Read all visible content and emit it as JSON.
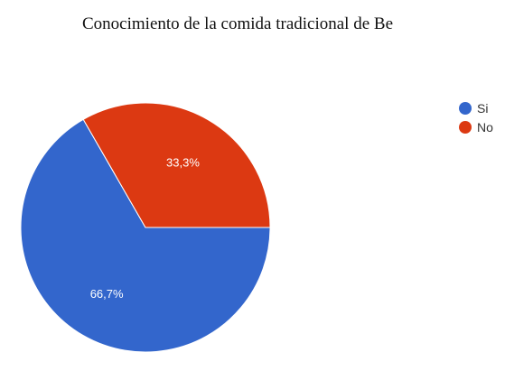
{
  "chart_data": {
    "type": "pie",
    "title": "Conocimiento de la comida tradicional de Be",
    "categories": [
      "Si",
      "No"
    ],
    "values": [
      66.7,
      33.3
    ],
    "data_labels": [
      "66,7%",
      "33,3%"
    ],
    "colors": [
      "#3366cc",
      "#dc3912"
    ],
    "legend_position": "right"
  }
}
